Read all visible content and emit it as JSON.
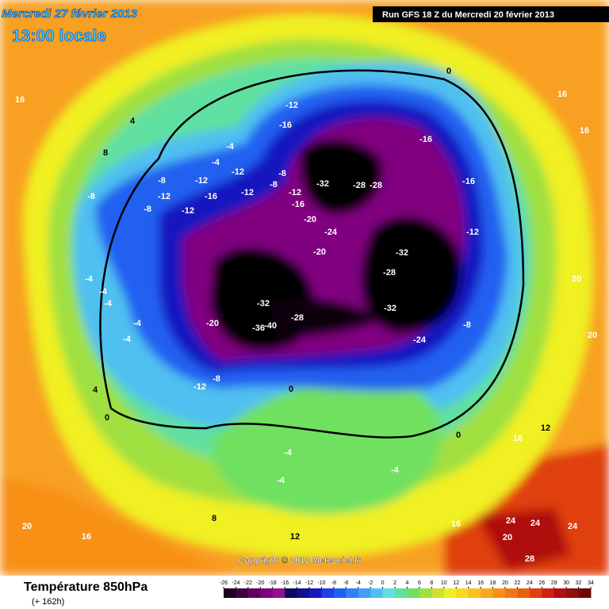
{
  "header": {
    "date": "Mercredi 27 février 2013",
    "time": "13:00 locale",
    "run": "Run GFS 18 Z du Mercredi 20 février 2013"
  },
  "copyright": "Copyright © 2012 Meteociel.fr",
  "footer": {
    "title": "Température 850hPa",
    "lead": "(+ 162h)"
  },
  "legend": {
    "ticks": [
      -26,
      -24,
      -22,
      -20,
      -18,
      -16,
      -14,
      -12,
      -10,
      -8,
      -6,
      -4,
      -2,
      0,
      2,
      4,
      6,
      8,
      10,
      12,
      14,
      16,
      18,
      20,
      22,
      24,
      26,
      28,
      30,
      32,
      34
    ],
    "colors": [
      "#200020",
      "#400040",
      "#600060",
      "#800080",
      "#901090",
      "#0a0a60",
      "#101090",
      "#1818c0",
      "#2040e0",
      "#2060f0",
      "#3080f8",
      "#40a0f8",
      "#50c0f0",
      "#60e0e0",
      "#60e0a0",
      "#70e060",
      "#a0e040",
      "#d0e030",
      "#f0f020",
      "#f8d820",
      "#f8c020",
      "#f8a820",
      "#f89018",
      "#f07818",
      "#e86010",
      "#e04010",
      "#d02010",
      "#b01010",
      "#901010",
      "#700808"
    ]
  },
  "contour_labels": [
    -12,
    -16,
    -16,
    -4,
    -4,
    -8,
    -12,
    -12,
    -8,
    -12,
    -16,
    -12,
    -8,
    -12,
    -16,
    -32,
    -28,
    -28,
    -16,
    -8,
    -8,
    -12,
    -20,
    -24,
    -12,
    -20,
    -32,
    -28,
    -4,
    -4,
    -4,
    -32,
    -32,
    -28,
    -20,
    -36,
    -40,
    -8,
    -4,
    -4,
    -24,
    -12,
    -8,
    0,
    16,
    4,
    0,
    16,
    16,
    8,
    4,
    0,
    -4,
    -4,
    -4,
    0,
    16,
    12,
    20,
    20,
    24,
    24,
    24,
    20,
    28,
    16,
    12,
    8,
    20,
    16
  ]
}
